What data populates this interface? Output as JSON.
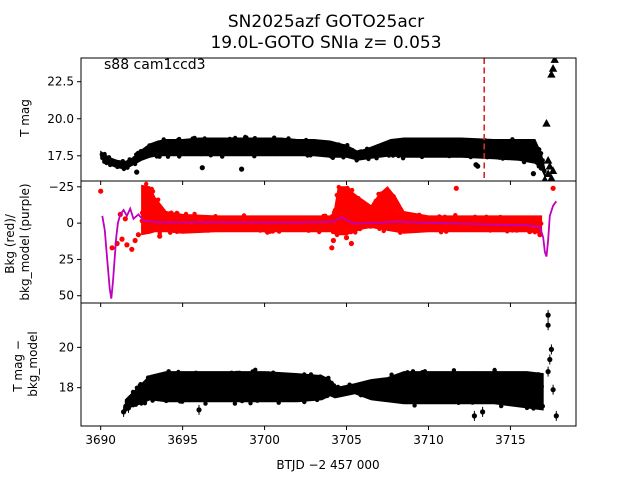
{
  "title_line1": "SN2025azf  GOTO25acr",
  "title_line2": "19.0L-GOTO SNIa z= 0.053",
  "chart_data": [
    {
      "type": "scatter",
      "panel": "top",
      "ylabel": "T mag",
      "annotation": "s88 cam1ccd3",
      "xlim": [
        3688.8,
        3719.0
      ],
      "ylim": [
        24.1,
        15.8
      ],
      "y_inverted": true,
      "yticks": [
        17.5,
        20.0,
        22.5
      ],
      "ytick_labels": [
        "17.5",
        "20.0",
        "22.5"
      ],
      "vline_x": 3713.4,
      "vline_color": "#d62728",
      "band": [
        [
          3690.0,
          17.8,
          17.3
        ],
        [
          3690.5,
          17.4,
          16.9
        ],
        [
          3691.0,
          17.2,
          16.7
        ],
        [
          3691.5,
          17.1,
          16.6
        ],
        [
          3692.0,
          17.4,
          16.9
        ],
        [
          3692.5,
          17.9,
          17.2
        ],
        [
          3693.0,
          18.3,
          17.4
        ],
        [
          3693.5,
          18.5,
          17.5
        ],
        [
          3694.0,
          18.6,
          17.5
        ],
        [
          3695.0,
          18.6,
          17.5
        ],
        [
          3696.0,
          18.7,
          17.5
        ],
        [
          3697.0,
          18.7,
          17.5
        ],
        [
          3698.0,
          18.7,
          17.5
        ],
        [
          3699.0,
          18.7,
          17.5
        ],
        [
          3700.0,
          18.7,
          17.5
        ],
        [
          3701.0,
          18.7,
          17.5
        ],
        [
          3702.0,
          18.6,
          17.5
        ],
        [
          3703.0,
          18.6,
          17.5
        ],
        [
          3704.0,
          18.5,
          17.4
        ],
        [
          3705.0,
          18.2,
          17.4
        ],
        [
          3705.7,
          17.8,
          17.2
        ],
        [
          3706.3,
          18.0,
          17.3
        ],
        [
          3707.0,
          18.3,
          17.4
        ],
        [
          3707.7,
          18.6,
          17.5
        ],
        [
          3708.5,
          18.7,
          17.4
        ],
        [
          3710.0,
          18.7,
          17.4
        ],
        [
          3712.0,
          18.7,
          17.4
        ],
        [
          3714.0,
          18.6,
          17.3
        ],
        [
          3715.5,
          18.6,
          17.2
        ],
        [
          3716.5,
          18.6,
          17.0
        ],
        [
          3716.9,
          17.6,
          16.6
        ],
        [
          3717.1,
          16.6,
          16.1
        ]
      ],
      "points": [
        [
          3696.2,
          16.7
        ],
        [
          3698.6,
          16.6
        ],
        [
          3712.9,
          16.9
        ],
        [
          3716.4,
          16.3
        ],
        [
          3713.0,
          16.8
        ],
        [
          3692.2,
          16.4
        ]
      ],
      "triangles": [
        [
          3717.1,
          15.9
        ],
        [
          3717.3,
          16.3
        ],
        [
          3717.4,
          16.8
        ],
        [
          3717.5,
          16.0
        ],
        [
          3717.6,
          16.5
        ],
        [
          3717.3,
          17.2
        ],
        [
          3717.2,
          19.7
        ],
        [
          3717.5,
          23.0
        ],
        [
          3717.6,
          23.4
        ],
        [
          3717.7,
          24.0
        ]
      ]
    },
    {
      "type": "scatter",
      "panel": "middle",
      "ylabel": "Bkg (red)/\nbkg_model (purple)",
      "xlim": [
        3688.8,
        3719.0
      ],
      "ylim": [
        -29.0,
        55.0
      ],
      "yticks": [
        -25,
        0,
        25,
        50
      ],
      "ytick_labels": [
        "−25",
        "0",
        "25",
        "50"
      ],
      "red_color": "#ff0000",
      "model_color": "#bf00bf",
      "red_band": [
        [
          3692.5,
          -26,
          8
        ],
        [
          3693.0,
          -25,
          7
        ],
        [
          3693.3,
          -18,
          6
        ],
        [
          3694.0,
          -8,
          6
        ],
        [
          3695.0,
          -6,
          7
        ],
        [
          3697.0,
          -5,
          6
        ],
        [
          3699.0,
          -5,
          6
        ],
        [
          3701.0,
          -5,
          6
        ],
        [
          3703.0,
          -5,
          6
        ],
        [
          3704.2,
          -5,
          6
        ],
        [
          3704.5,
          -25,
          8
        ],
        [
          3705.0,
          -25,
          8
        ],
        [
          3705.5,
          -20,
          6
        ],
        [
          3706.0,
          -16,
          4
        ],
        [
          3706.5,
          -12,
          3
        ],
        [
          3707.0,
          -20,
          4
        ],
        [
          3707.5,
          -25,
          5
        ],
        [
          3708.0,
          -18,
          6
        ],
        [
          3708.5,
          -8,
          7
        ],
        [
          3710.0,
          -5,
          6
        ],
        [
          3712.0,
          -5,
          6
        ],
        [
          3714.0,
          -5,
          6
        ],
        [
          3716.0,
          -5,
          6
        ],
        [
          3716.9,
          -5,
          7
        ]
      ],
      "red_points": [
        [
          3690.0,
          -22
        ],
        [
          3690.7,
          17
        ],
        [
          3691.0,
          14
        ],
        [
          3691.3,
          11
        ],
        [
          3691.6,
          15
        ],
        [
          3691.9,
          18
        ],
        [
          3692.1,
          12
        ],
        [
          3692.3,
          8
        ],
        [
          3691.2,
          -6
        ],
        [
          3691.5,
          -3
        ],
        [
          3692.7,
          -15
        ],
        [
          3693.0,
          2
        ],
        [
          3704.1,
          17
        ],
        [
          3704.2,
          12
        ],
        [
          3704.3,
          6
        ],
        [
          3711.7,
          -24
        ],
        [
          3717.6,
          -24
        ],
        [
          3716.8,
          8
        ],
        [
          3693.6,
          9
        ],
        [
          3705.0,
          10
        ],
        [
          3705.3,
          14
        ]
      ],
      "model_line": [
        [
          3690.1,
          -5
        ],
        [
          3690.25,
          5
        ],
        [
          3690.4,
          25
        ],
        [
          3690.55,
          45
        ],
        [
          3690.65,
          52
        ],
        [
          3690.75,
          40
        ],
        [
          3690.85,
          25
        ],
        [
          3690.95,
          10
        ],
        [
          3691.05,
          0
        ],
        [
          3691.2,
          -6
        ],
        [
          3691.4,
          -9
        ],
        [
          3691.6,
          -5
        ],
        [
          3691.8,
          -10
        ],
        [
          3692.0,
          -3
        ],
        [
          3692.3,
          -6
        ],
        [
          3692.6,
          -2
        ],
        [
          3693.0,
          -1
        ],
        [
          3694.0,
          -0.5
        ],
        [
          3696.0,
          -0.5
        ],
        [
          3698.0,
          -0.5
        ],
        [
          3700.0,
          -0.5
        ],
        [
          3702.0,
          -0.5
        ],
        [
          3703.5,
          -0.8
        ],
        [
          3704.2,
          -1
        ],
        [
          3704.5,
          -3
        ],
        [
          3704.7,
          -4
        ],
        [
          3705.0,
          -2
        ],
        [
          3705.5,
          0.3
        ],
        [
          3706.5,
          0
        ],
        [
          3708.0,
          -1
        ],
        [
          3710.0,
          -0.2
        ],
        [
          3712.0,
          0.3
        ],
        [
          3714.0,
          1
        ],
        [
          3716.0,
          1.5
        ],
        [
          3716.8,
          2.5
        ],
        [
          3717.0,
          10
        ],
        [
          3717.1,
          20
        ],
        [
          3717.2,
          23
        ],
        [
          3717.3,
          12
        ],
        [
          3717.4,
          -5
        ],
        [
          3717.6,
          -12
        ],
        [
          3717.8,
          -15
        ]
      ]
    },
    {
      "type": "scatter",
      "panel": "bottom",
      "ylabel": "T mag −\nbkg_model",
      "xlabel": "BTJD −2 457 000",
      "xlim": [
        3688.8,
        3719.0
      ],
      "ylim": [
        22.2,
        16.1
      ],
      "y_inverted": true,
      "xticks": [
        3690,
        3695,
        3700,
        3705,
        3710,
        3715
      ],
      "xtick_labels": [
        "3690",
        "3695",
        "3700",
        "3705",
        "3710",
        "3715"
      ],
      "yticks": [
        18,
        20
      ],
      "ytick_labels": [
        "18",
        "20"
      ],
      "band": [
        [
          3691.5,
          17.4,
          16.9
        ],
        [
          3692.0,
          17.8,
          17.1
        ],
        [
          3692.5,
          18.2,
          17.2
        ],
        [
          3693.0,
          18.6,
          17.4
        ],
        [
          3694.0,
          18.8,
          17.3
        ],
        [
          3696.0,
          18.8,
          17.3
        ],
        [
          3698.0,
          18.8,
          17.3
        ],
        [
          3700.0,
          18.8,
          17.3
        ],
        [
          3702.0,
          18.7,
          17.3
        ],
        [
          3703.5,
          18.6,
          17.4
        ],
        [
          3704.0,
          18.4,
          17.6
        ],
        [
          3704.3,
          18.0,
          17.5
        ],
        [
          3705.5,
          18.2,
          17.7
        ],
        [
          3706.5,
          18.4,
          17.4
        ],
        [
          3707.5,
          18.5,
          17.3
        ],
        [
          3708.5,
          18.8,
          17.2
        ],
        [
          3710.0,
          18.8,
          17.2
        ],
        [
          3712.0,
          18.8,
          17.2
        ],
        [
          3714.0,
          18.8,
          17.2
        ],
        [
          3716.0,
          18.8,
          17.0
        ],
        [
          3717.0,
          18.7,
          16.9
        ]
      ],
      "points": [
        [
          3691.4,
          16.8
        ],
        [
          3691.7,
          17.0
        ],
        [
          3696.0,
          16.9
        ],
        [
          3712.8,
          16.6
        ],
        [
          3713.3,
          16.8
        ],
        [
          3717.3,
          18.8
        ],
        [
          3717.4,
          19.4
        ],
        [
          3717.5,
          19.9
        ],
        [
          3717.3,
          21.1
        ],
        [
          3717.3,
          21.6
        ],
        [
          3717.8,
          16.6
        ],
        [
          3717.6,
          17.9
        ]
      ]
    }
  ]
}
